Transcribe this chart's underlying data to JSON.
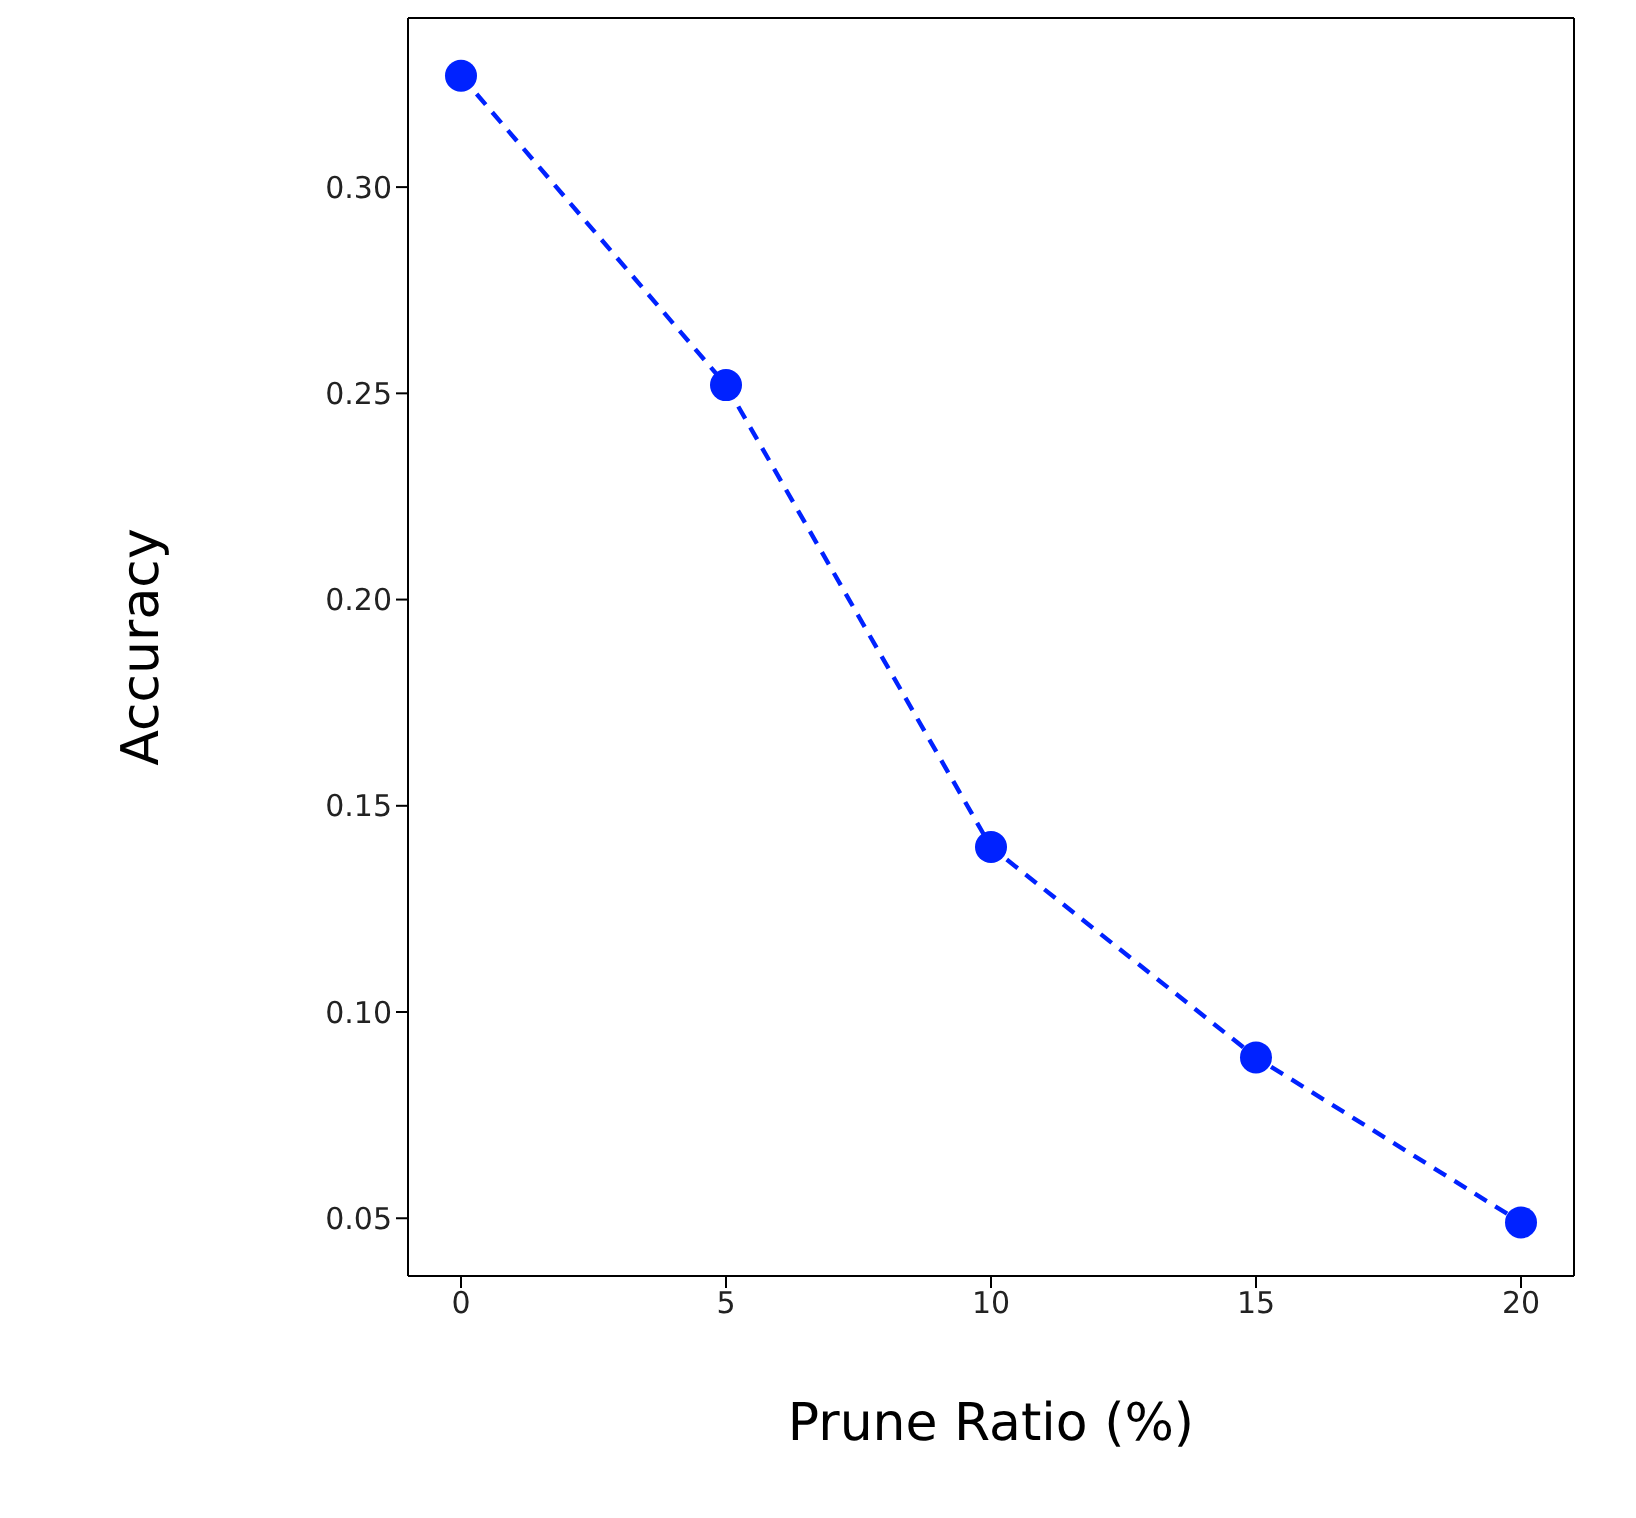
{
  "chart_data": {
    "type": "line",
    "xlabel": "Prune Ratio (%)",
    "ylabel": "Accuracy",
    "x": [
      0,
      5,
      10,
      15,
      20
    ],
    "series": [
      {
        "color": "#0022ff",
        "values": [
          0.327,
          0.252,
          0.14,
          0.089,
          0.049
        ]
      }
    ],
    "xlim": [
      -1,
      21
    ],
    "xticks": [
      0,
      5,
      10,
      15,
      20
    ],
    "ylim": [
      0.036,
      0.341
    ],
    "yticks": [
      {
        "value": 0.05,
        "label": "0.05"
      },
      {
        "value": 0.1,
        "label": "0.10"
      },
      {
        "value": 0.15,
        "label": "0.15"
      },
      {
        "value": 0.2,
        "label": "0.20"
      },
      {
        "value": 0.25,
        "label": "0.25"
      },
      {
        "value": 0.3,
        "label": "0.30"
      }
    ],
    "marker": "circle",
    "line_style": "dashed",
    "grid": false,
    "legend": false
  }
}
